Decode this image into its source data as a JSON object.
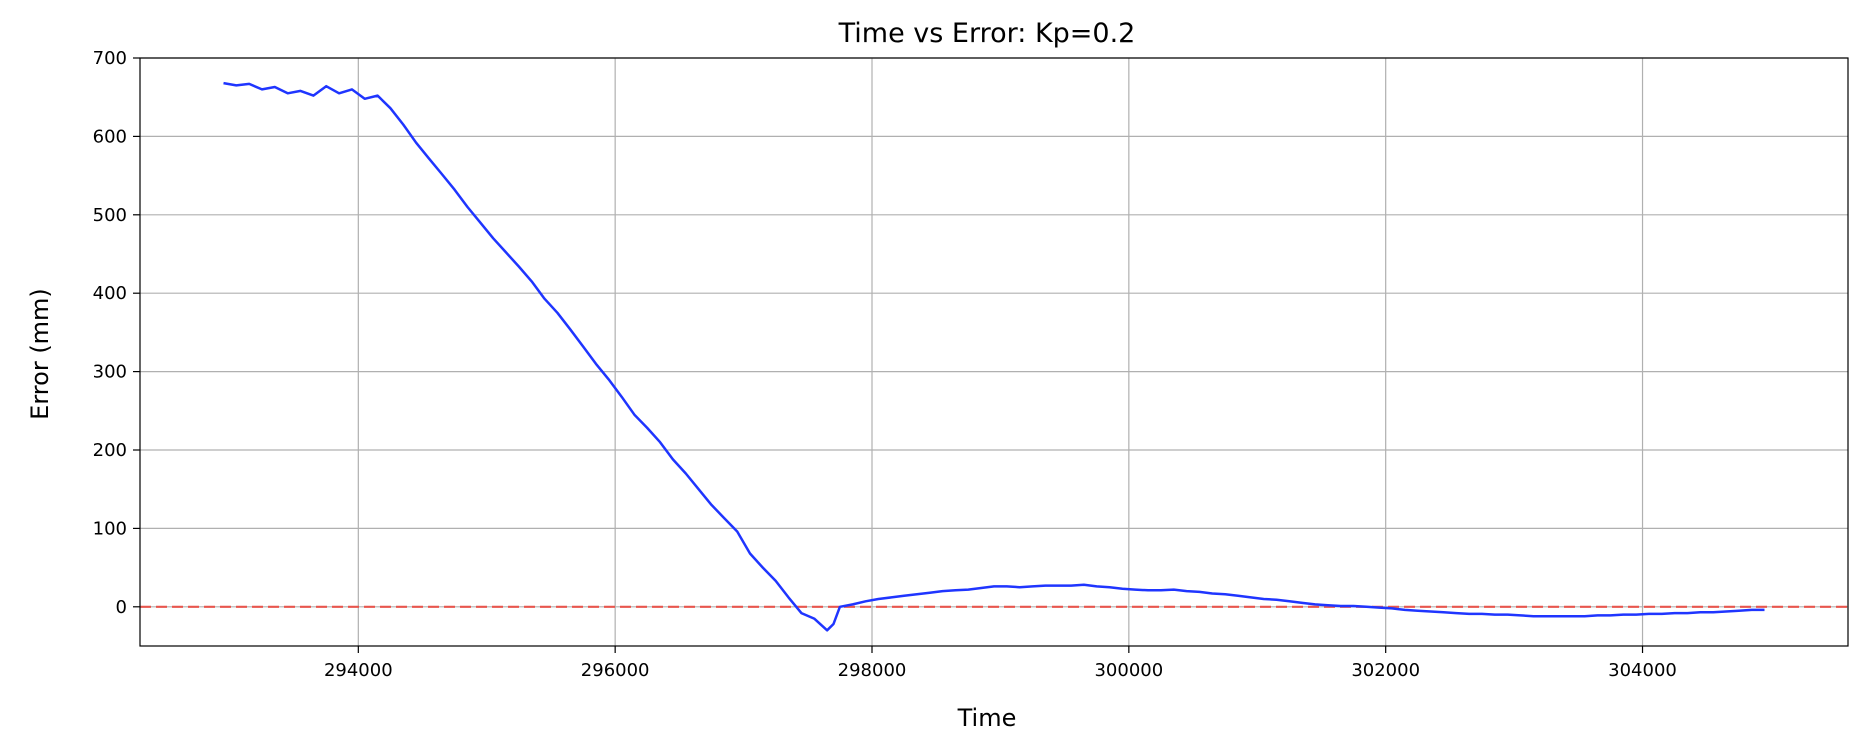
{
  "chart_data": {
    "type": "line",
    "title": "Time vs Error: Kp=0.2",
    "xlabel": "Time",
    "ylabel": "Error (mm)",
    "xlim": [
      292300,
      305600
    ],
    "ylim": [
      -50,
      700
    ],
    "xticks": [
      294000,
      296000,
      298000,
      300000,
      302000,
      304000
    ],
    "yticks": [
      0,
      100,
      200,
      300,
      400,
      500,
      600,
      700
    ],
    "ytick_labels": [
      "0",
      "100",
      "200",
      "300",
      "400",
      "500",
      "600",
      "700"
    ],
    "grid": true,
    "colors": {
      "series": "#1f35ff",
      "reference": "#e8564d",
      "grid": "#b0b0b0"
    },
    "reference_line": {
      "y": 0,
      "style": "dashed"
    },
    "series": [
      {
        "x": [
          292950,
          293050,
          293150,
          293250,
          293350,
          293450,
          293550,
          293650,
          293750,
          293850,
          293950,
          294050,
          294150,
          294250,
          294350,
          294450,
          294550,
          294650,
          294750,
          294850,
          294950,
          295050,
          295150,
          295250,
          295350,
          295450,
          295550,
          295650,
          295750,
          295850,
          295950,
          296050,
          296150,
          296250,
          296350,
          296450,
          296550,
          296650,
          296750,
          296850,
          296950,
          297050,
          297150,
          297250,
          297350,
          297450,
          297550,
          297650,
          297700,
          297750,
          297850,
          297950,
          298050,
          298150,
          298250,
          298350,
          298450,
          298550,
          298650,
          298750,
          298850,
          298950,
          299050,
          299150,
          299250,
          299350,
          299450,
          299550,
          299650,
          299750,
          299850,
          299950,
          300050,
          300150,
          300250,
          300350,
          300450,
          300550,
          300650,
          300750,
          300850,
          300950,
          301050,
          301150,
          301250,
          301350,
          301450,
          301550,
          301650,
          301750,
          301850,
          301950,
          302050,
          302150,
          302250,
          302350,
          302450,
          302550,
          302650,
          302750,
          302850,
          302950,
          303050,
          303150,
          303250,
          303350,
          303450,
          303550,
          303650,
          303750,
          303850,
          303950,
          304050,
          304150,
          304250,
          304350,
          304450,
          304550,
          304650,
          304750,
          304850,
          304950
        ],
        "values": [
          668,
          665,
          667,
          660,
          663,
          655,
          658,
          652,
          664,
          655,
          660,
          648,
          652,
          636,
          615,
          592,
          572,
          552,
          532,
          510,
          490,
          470,
          452,
          434,
          415,
          393,
          375,
          354,
          332,
          310,
          290,
          268,
          245,
          228,
          210,
          188,
          170,
          150,
          130,
          113,
          96,
          68,
          50,
          33,
          12,
          -8,
          -15,
          -30,
          -22,
          0,
          3,
          7,
          10,
          12,
          14,
          16,
          18,
          20,
          21,
          22,
          24,
          26,
          26,
          25,
          26,
          27,
          27,
          27,
          28,
          26,
          25,
          23,
          22,
          21,
          21,
          22,
          20,
          19,
          17,
          16,
          14,
          12,
          10,
          9,
          7,
          5,
          3,
          2,
          1,
          1,
          0,
          -1,
          -2,
          -4,
          -5,
          -6,
          -7,
          -8,
          -9,
          -9,
          -10,
          -10,
          -11,
          -12,
          -12,
          -12,
          -12,
          -12,
          -11,
          -11,
          -10,
          -10,
          -9,
          -9,
          -8,
          -8,
          -7,
          -7,
          -6,
          -5,
          -4,
          -4
        ]
      }
    ]
  }
}
